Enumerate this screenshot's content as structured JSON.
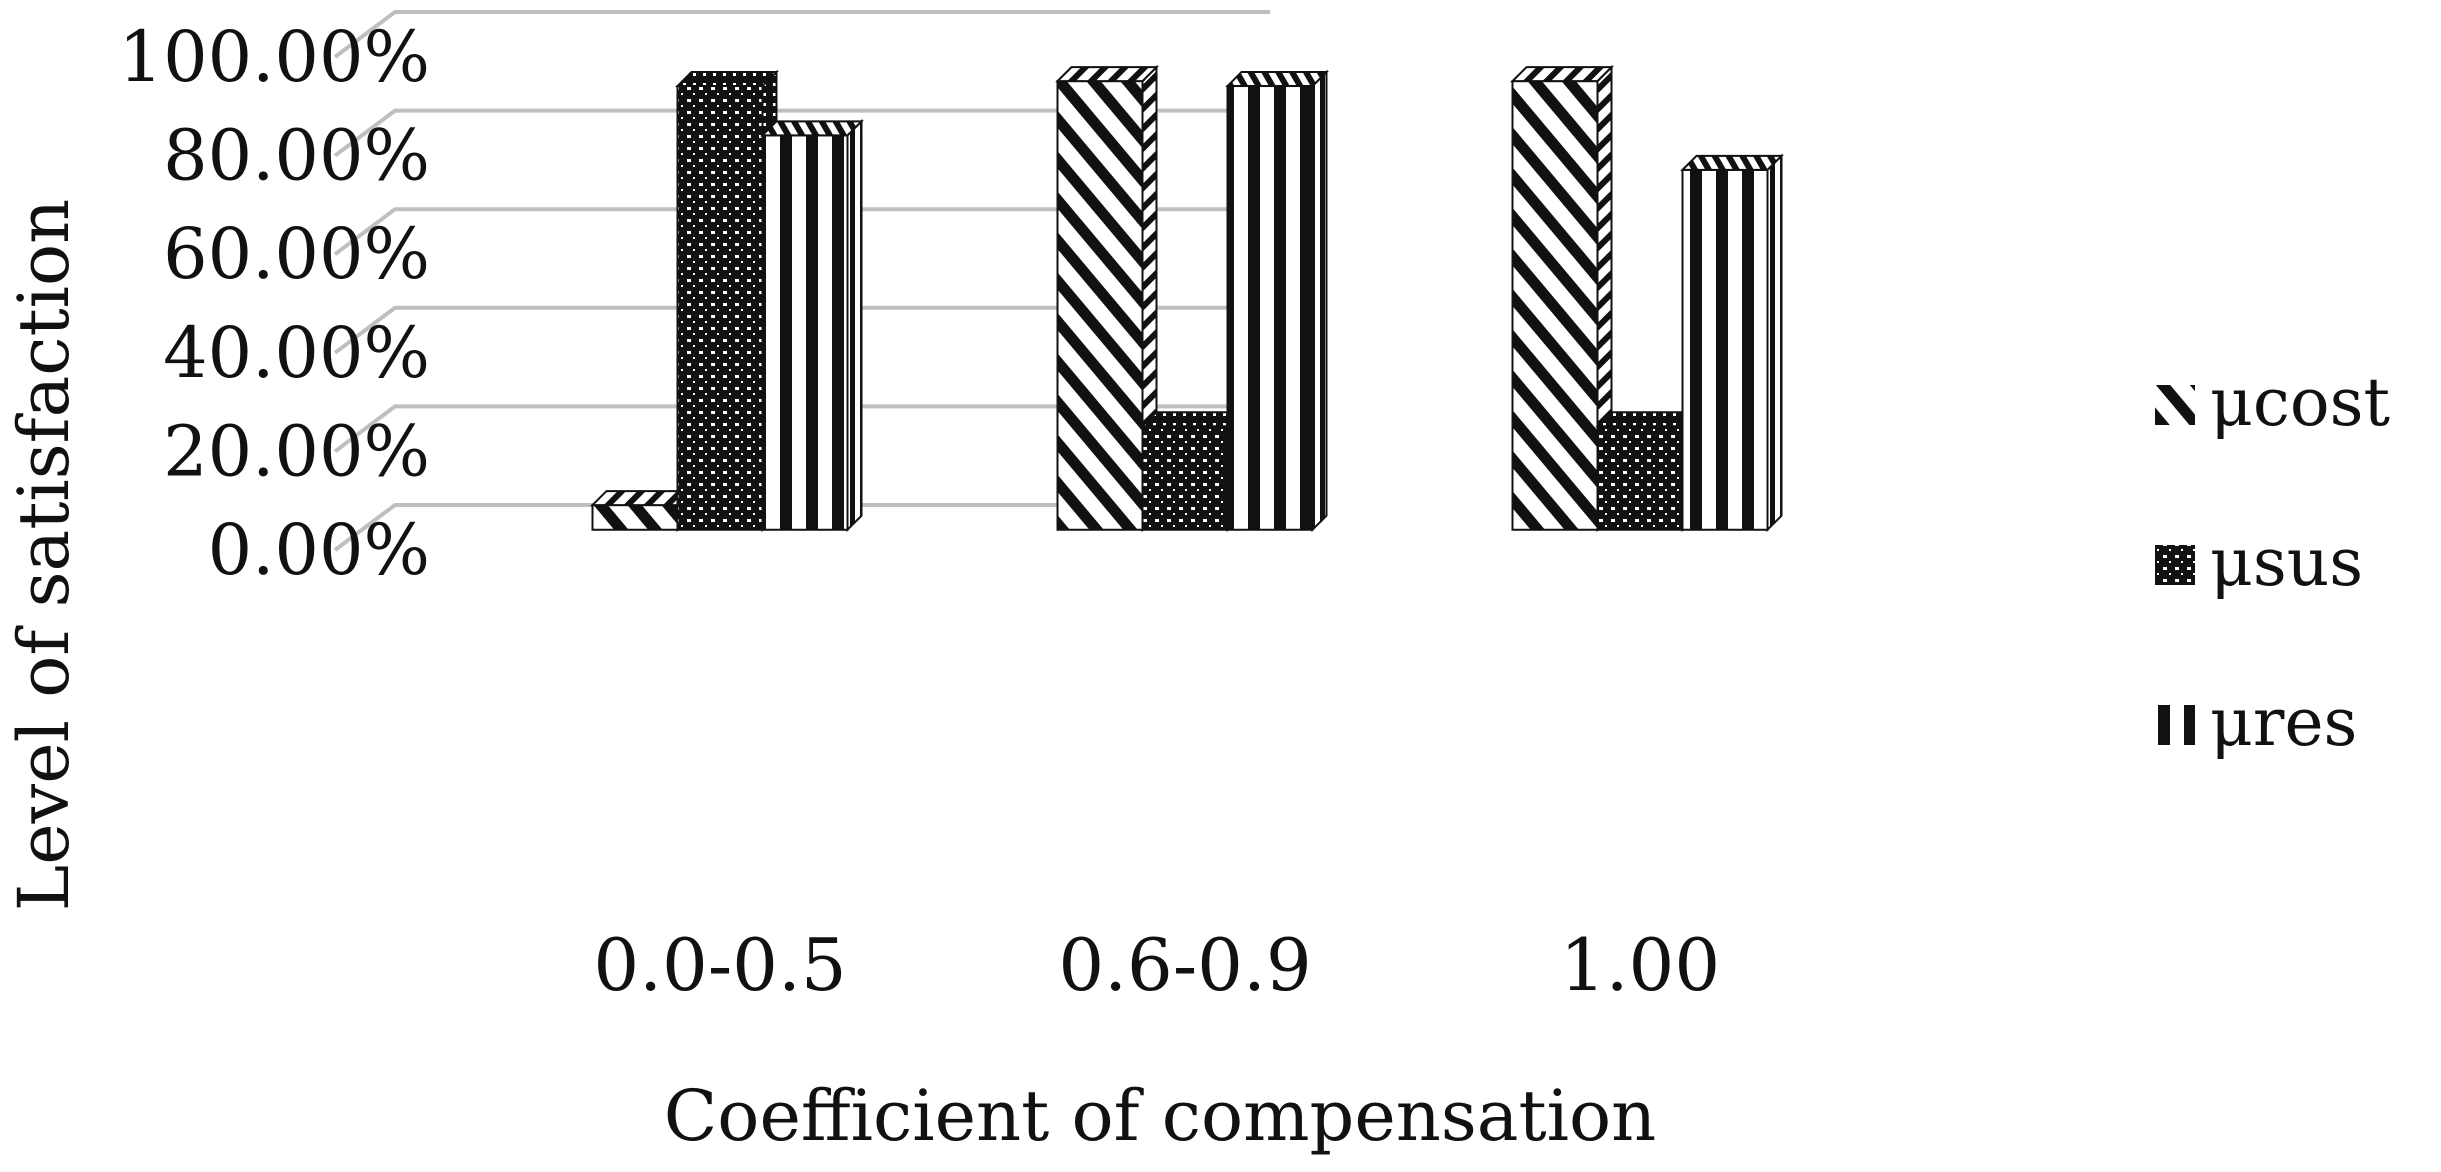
{
  "chart_data": {
    "type": "bar",
    "title": "",
    "xlabel": "Coefficient of compensation",
    "ylabel": "Level of satisfaction",
    "categories": [
      "0.0-0.5",
      "0.6-0.9",
      "1.00"
    ],
    "series": [
      {
        "name": "μcost",
        "values": [
          0.05,
          0.91,
          0.91
        ],
        "pattern": "diagonal-stripes"
      },
      {
        "name": "μsus",
        "values": [
          0.9,
          0.21,
          0.21
        ],
        "pattern": "dense-dots"
      },
      {
        "name": "μres",
        "values": [
          0.8,
          0.9,
          0.73
        ],
        "pattern": "vertical-stripes"
      }
    ],
    "y_ticks": [
      "0.00%",
      "20.00%",
      "40.00%",
      "60.00%",
      "80.00%",
      "100.00%"
    ],
    "ylim": [
      0,
      1
    ],
    "grid": true,
    "legend_position": "right",
    "style": "3d-clustered-column",
    "colors": {
      "ink": "#111111",
      "grid": "#bfbfbf",
      "background": "#ffffff"
    }
  }
}
